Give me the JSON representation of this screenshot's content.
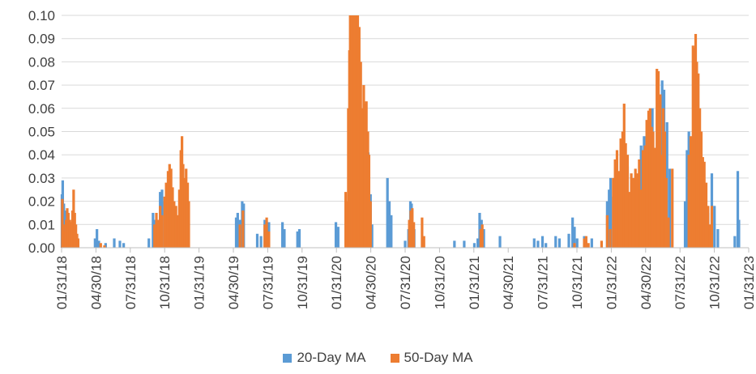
{
  "chart_data": {
    "type": "bar",
    "title": "",
    "xlabel": "",
    "ylabel": "",
    "ylim": [
      0,
      0.1
    ],
    "yticks": [
      "0.00",
      "0.01",
      "0.02",
      "0.03",
      "0.04",
      "0.05",
      "0.06",
      "0.07",
      "0.08",
      "0.09",
      "0.10"
    ],
    "xlim": [
      "2018-01-31",
      "2023-01-31"
    ],
    "xticks": [
      "01/31/18",
      "04/30/18",
      "07/31/18",
      "10/31/18",
      "01/31/19",
      "04/30/19",
      "07/31/19",
      "10/31/19",
      "01/31/20",
      "04/30/20",
      "07/31/20",
      "10/31/20",
      "01/31/21",
      "04/30/21",
      "07/31/21",
      "10/31/21",
      "01/31/22",
      "04/30/22",
      "07/31/22",
      "10/31/22",
      "01/31/23"
    ],
    "grid": true,
    "legend_position": "bottom",
    "series": [
      {
        "name": "20-Day MA",
        "color": "#5b9bd5",
        "points": [
          [
            "2018-02-01",
            0.023
          ],
          [
            "2018-02-03",
            0.029
          ],
          [
            "2018-02-06",
            0.019
          ],
          [
            "2018-02-09",
            0.016
          ],
          [
            "2018-02-13",
            0.012
          ],
          [
            "2018-02-17",
            0.009
          ],
          [
            "2018-02-22",
            0.008
          ],
          [
            "2018-03-01",
            0.006
          ],
          [
            "2018-04-30",
            0.004
          ],
          [
            "2018-05-05",
            0.008
          ],
          [
            "2018-05-10",
            0.003
          ],
          [
            "2018-05-28",
            0.002
          ],
          [
            "2018-06-20",
            0.004
          ],
          [
            "2018-07-05",
            0.003
          ],
          [
            "2018-07-15",
            0.002
          ],
          [
            "2018-09-20",
            0.004
          ],
          [
            "2018-10-01",
            0.015
          ],
          [
            "2018-10-05",
            0.012
          ],
          [
            "2018-10-10",
            0.009
          ],
          [
            "2018-10-20",
            0.024
          ],
          [
            "2018-10-25",
            0.025
          ],
          [
            "2018-11-01",
            0.02
          ],
          [
            "2018-11-08",
            0.017
          ],
          [
            "2018-11-15",
            0.012
          ],
          [
            "2018-11-25",
            0.009
          ],
          [
            "2018-12-05",
            0.008
          ],
          [
            "2018-12-15",
            0.015
          ],
          [
            "2018-12-22",
            0.011
          ],
          [
            "2019-05-10",
            0.013
          ],
          [
            "2019-05-14",
            0.015
          ],
          [
            "2019-05-20",
            0.012
          ],
          [
            "2019-05-26",
            0.02
          ],
          [
            "2019-05-30",
            0.019
          ],
          [
            "2019-07-05",
            0.006
          ],
          [
            "2019-07-15",
            0.005
          ],
          [
            "2019-07-25",
            0.012
          ],
          [
            "2019-08-05",
            0.011
          ],
          [
            "2019-09-10",
            0.011
          ],
          [
            "2019-09-15",
            0.008
          ],
          [
            "2019-10-20",
            0.007
          ],
          [
            "2019-10-25",
            0.008
          ],
          [
            "2020-01-30",
            0.011
          ],
          [
            "2020-02-05",
            0.009
          ],
          [
            "2020-04-20",
            0.03
          ],
          [
            "2020-04-25",
            0.041
          ],
          [
            "2020-05-01",
            0.023
          ],
          [
            "2020-05-05",
            0.01
          ],
          [
            "2020-06-15",
            0.03
          ],
          [
            "2020-06-20",
            0.02
          ],
          [
            "2020-06-25",
            0.014
          ],
          [
            "2020-08-01",
            0.003
          ],
          [
            "2020-08-10",
            0.008
          ],
          [
            "2020-08-15",
            0.02
          ],
          [
            "2020-08-18",
            0.019
          ],
          [
            "2020-08-25",
            0.008
          ],
          [
            "2020-12-10",
            0.003
          ],
          [
            "2021-01-05",
            0.003
          ],
          [
            "2021-02-01",
            0.002
          ],
          [
            "2021-02-10",
            0.004
          ],
          [
            "2021-02-15",
            0.015
          ],
          [
            "2021-02-20",
            0.012
          ],
          [
            "2021-02-26",
            0.008
          ],
          [
            "2021-04-10",
            0.005
          ],
          [
            "2021-07-10",
            0.004
          ],
          [
            "2021-07-20",
            0.003
          ],
          [
            "2021-08-01",
            0.005
          ],
          [
            "2021-08-10",
            0.002
          ],
          [
            "2021-09-05",
            0.005
          ],
          [
            "2021-09-15",
            0.004
          ],
          [
            "2021-10-10",
            0.006
          ],
          [
            "2021-10-20",
            0.013
          ],
          [
            "2021-10-25",
            0.009
          ],
          [
            "2021-11-01",
            0.004
          ],
          [
            "2021-11-20",
            0.005
          ],
          [
            "2021-12-10",
            0.004
          ],
          [
            "2022-01-20",
            0.02
          ],
          [
            "2022-01-25",
            0.025
          ],
          [
            "2022-01-29",
            0.03
          ],
          [
            "2022-02-05",
            0.022
          ],
          [
            "2022-02-15",
            0.03
          ],
          [
            "2022-02-25",
            0.025
          ],
          [
            "2022-03-15",
            0.035
          ],
          [
            "2022-03-25",
            0.028
          ],
          [
            "2022-04-05",
            0.03
          ],
          [
            "2022-04-20",
            0.044
          ],
          [
            "2022-04-28",
            0.048
          ],
          [
            "2022-05-10",
            0.055
          ],
          [
            "2022-05-20",
            0.06
          ],
          [
            "2022-05-28",
            0.042
          ],
          [
            "2022-06-05",
            0.065
          ],
          [
            "2022-06-15",
            0.072
          ],
          [
            "2022-06-20",
            0.068
          ],
          [
            "2022-06-28",
            0.054
          ],
          [
            "2022-07-05",
            0.034
          ],
          [
            "2022-08-15",
            0.02
          ],
          [
            "2022-08-20",
            0.042
          ],
          [
            "2022-08-25",
            0.05
          ],
          [
            "2022-08-30",
            0.044
          ],
          [
            "2022-09-05",
            0.048
          ],
          [
            "2022-09-10",
            0.04
          ],
          [
            "2022-09-20",
            0.03
          ],
          [
            "2022-10-01",
            0.02
          ],
          [
            "2022-10-15",
            0.015
          ],
          [
            "2022-10-25",
            0.032
          ],
          [
            "2022-11-01",
            0.018
          ],
          [
            "2022-11-10",
            0.008
          ],
          [
            "2022-12-25",
            0.005
          ],
          [
            "2023-01-02",
            0.033
          ],
          [
            "2023-01-05",
            0.012
          ]
        ]
      },
      {
        "name": "50-Day MA",
        "color": "#ed7d31",
        "points": [
          [
            "2018-02-02",
            0.021
          ],
          [
            "2018-02-05",
            0.01
          ],
          [
            "2018-02-08",
            0.007
          ],
          [
            "2018-02-12",
            0.012
          ],
          [
            "2018-02-15",
            0.017
          ],
          [
            "2018-02-18",
            0.015
          ],
          [
            "2018-02-22",
            0.012
          ],
          [
            "2018-02-26",
            0.011
          ],
          [
            "2018-03-01",
            0.016
          ],
          [
            "2018-03-04",
            0.025
          ],
          [
            "2018-03-07",
            0.015
          ],
          [
            "2018-03-10",
            0.01
          ],
          [
            "2018-03-13",
            0.006
          ],
          [
            "2018-03-16",
            0.004
          ],
          [
            "2018-05-15",
            0.002
          ],
          [
            "2018-05-25",
            0.001
          ],
          [
            "2018-10-05",
            0.01
          ],
          [
            "2018-10-10",
            0.015
          ],
          [
            "2018-10-15",
            0.012
          ],
          [
            "2018-10-20",
            0.018
          ],
          [
            "2018-10-25",
            0.014
          ],
          [
            "2018-11-01",
            0.022
          ],
          [
            "2018-11-05",
            0.028
          ],
          [
            "2018-11-10",
            0.033
          ],
          [
            "2018-11-14",
            0.036
          ],
          [
            "2018-11-18",
            0.034
          ],
          [
            "2018-11-22",
            0.026
          ],
          [
            "2018-11-26",
            0.02
          ],
          [
            "2018-12-01",
            0.018
          ],
          [
            "2018-12-05",
            0.014
          ],
          [
            "2018-12-10",
            0.025
          ],
          [
            "2018-12-14",
            0.042
          ],
          [
            "2018-12-17",
            0.048
          ],
          [
            "2018-12-20",
            0.036
          ],
          [
            "2018-12-24",
            0.03
          ],
          [
            "2018-12-28",
            0.034
          ],
          [
            "2019-01-01",
            0.028
          ],
          [
            "2019-01-04",
            0.02
          ],
          [
            "2019-05-20",
            0.01
          ],
          [
            "2019-05-28",
            0.016
          ],
          [
            "2019-07-25",
            0.01
          ],
          [
            "2019-07-30",
            0.013
          ],
          [
            "2019-08-05",
            0.007
          ],
          [
            "2020-02-25",
            0.024
          ],
          [
            "2020-02-28",
            0.02
          ],
          [
            "2020-03-03",
            0.06
          ],
          [
            "2020-03-06",
            0.085
          ],
          [
            "2020-03-08",
            0.1
          ],
          [
            "2020-03-12",
            0.1
          ],
          [
            "2020-03-16",
            0.1
          ],
          [
            "2020-03-20",
            0.1
          ],
          [
            "2020-03-24",
            0.1
          ],
          [
            "2020-03-28",
            0.1
          ],
          [
            "2020-04-01",
            0.095
          ],
          [
            "2020-04-05",
            0.08
          ],
          [
            "2020-04-09",
            0.06
          ],
          [
            "2020-04-13",
            0.07
          ],
          [
            "2020-04-16",
            0.062
          ],
          [
            "2020-04-20",
            0.063
          ],
          [
            "2020-04-24",
            0.05
          ],
          [
            "2020-04-27",
            0.04
          ],
          [
            "2020-05-01",
            0.02
          ],
          [
            "2020-08-12",
            0.012
          ],
          [
            "2020-08-16",
            0.016
          ],
          [
            "2020-08-20",
            0.017
          ],
          [
            "2020-08-24",
            0.011
          ],
          [
            "2020-09-15",
            0.013
          ],
          [
            "2020-09-20",
            0.005
          ],
          [
            "2021-02-18",
            0.008
          ],
          [
            "2021-02-22",
            0.01
          ],
          [
            "2021-10-25",
            0.002
          ],
          [
            "2021-11-20",
            0.004
          ],
          [
            "2021-11-25",
            0.005
          ],
          [
            "2021-12-01",
            0.002
          ],
          [
            "2022-01-05",
            0.003
          ],
          [
            "2022-01-20",
            0.014
          ],
          [
            "2022-01-28",
            0.008
          ],
          [
            "2022-02-05",
            0.03
          ],
          [
            "2022-02-10",
            0.038
          ],
          [
            "2022-02-15",
            0.042
          ],
          [
            "2022-02-20",
            0.033
          ],
          [
            "2022-02-25",
            0.047
          ],
          [
            "2022-03-02",
            0.05
          ],
          [
            "2022-03-06",
            0.062
          ],
          [
            "2022-03-10",
            0.045
          ],
          [
            "2022-03-15",
            0.04
          ],
          [
            "2022-03-20",
            0.024
          ],
          [
            "2022-03-25",
            0.032
          ],
          [
            "2022-03-30",
            0.03
          ],
          [
            "2022-04-05",
            0.034
          ],
          [
            "2022-04-10",
            0.032
          ],
          [
            "2022-04-15",
            0.038
          ],
          [
            "2022-04-20",
            0.025
          ],
          [
            "2022-04-25",
            0.042
          ],
          [
            "2022-05-01",
            0.044
          ],
          [
            "2022-05-05",
            0.055
          ],
          [
            "2022-05-10",
            0.059
          ],
          [
            "2022-05-14",
            0.06
          ],
          [
            "2022-05-18",
            0.052
          ],
          [
            "2022-05-22",
            0.05
          ],
          [
            "2022-05-26",
            0.043
          ],
          [
            "2022-06-01",
            0.077
          ],
          [
            "2022-06-05",
            0.076
          ],
          [
            "2022-06-10",
            0.066
          ],
          [
            "2022-06-14",
            0.04
          ],
          [
            "2022-06-18",
            0.06
          ],
          [
            "2022-06-22",
            0.05
          ],
          [
            "2022-06-26",
            0.03
          ],
          [
            "2022-07-02",
            0.013
          ],
          [
            "2022-07-12",
            0.034
          ],
          [
            "2022-08-25",
            0.04
          ],
          [
            "2022-08-30",
            0.048
          ],
          [
            "2022-09-05",
            0.087
          ],
          [
            "2022-09-08",
            0.086
          ],
          [
            "2022-09-12",
            0.092
          ],
          [
            "2022-09-15",
            0.08
          ],
          [
            "2022-09-19",
            0.075
          ],
          [
            "2022-09-23",
            0.06
          ],
          [
            "2022-09-27",
            0.05
          ],
          [
            "2022-10-01",
            0.039
          ],
          [
            "2022-10-05",
            0.037
          ],
          [
            "2022-10-10",
            0.028
          ],
          [
            "2022-10-15",
            0.018
          ],
          [
            "2022-10-20",
            0.01
          ],
          [
            "2022-10-25",
            0.018
          ]
        ]
      }
    ]
  }
}
